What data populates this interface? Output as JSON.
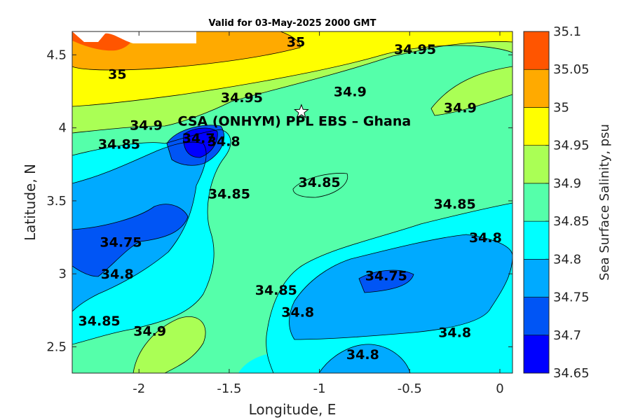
{
  "chart_data": {
    "type": "contour",
    "title": "Valid for 03-May-2025 2000 GMT",
    "xlabel": "Longitude, E",
    "ylabel": "Latitude, N",
    "colorbar_label": "Sea Surface Salinity, psu",
    "xlim": [
      -2.37,
      0.07
    ],
    "ylim": [
      2.32,
      4.66
    ],
    "x_ticks": [
      "-2",
      "-1.5",
      "-1",
      "-0.5",
      "0"
    ],
    "y_ticks": [
      "2.5",
      "3",
      "3.5",
      "4",
      "4.5"
    ],
    "colorbar_ticks": [
      "34.65",
      "34.7",
      "34.75",
      "34.8",
      "34.85",
      "34.9",
      "34.95",
      "35",
      "35.05",
      "35.1"
    ],
    "levels": [
      {
        "range": [
          34.65,
          34.7
        ],
        "color": "#0000ff"
      },
      {
        "range": [
          34.7,
          34.75
        ],
        "color": "#0055f5"
      },
      {
        "range": [
          34.75,
          34.8
        ],
        "color": "#00aaff"
      },
      {
        "range": [
          34.8,
          34.85
        ],
        "color": "#00ffff"
      },
      {
        "range": [
          34.85,
          34.9
        ],
        "color": "#55ffaa"
      },
      {
        "range": [
          34.9,
          34.95
        ],
        "color": "#aaff55"
      },
      {
        "range": [
          34.95,
          35.0
        ],
        "color": "#ffff00"
      },
      {
        "range": [
          35.0,
          35.05
        ],
        "color": "#ffaa00"
      },
      {
        "range": [
          35.05,
          35.1
        ],
        "color": "#ff5500"
      }
    ],
    "contour_labels": [
      {
        "text": "35",
        "lon": -1.13,
        "lat": 4.59
      },
      {
        "text": "34.95",
        "lon": -0.47,
        "lat": 4.54
      },
      {
        "text": "35",
        "lon": -2.12,
        "lat": 4.37
      },
      {
        "text": "34.95",
        "lon": -1.43,
        "lat": 4.21
      },
      {
        "text": "34.9",
        "lon": -0.83,
        "lat": 4.25
      },
      {
        "text": "34.9",
        "lon": -1.96,
        "lat": 4.02
      },
      {
        "text": "34.9",
        "lon": -0.22,
        "lat": 4.14
      },
      {
        "text": "34.85",
        "lon": -2.11,
        "lat": 3.89
      },
      {
        "text": "34.7",
        "lon": -1.67,
        "lat": 3.93
      },
      {
        "text": "34.8",
        "lon": -1.53,
        "lat": 3.91
      },
      {
        "text": "34.85",
        "lon": -1.5,
        "lat": 3.55
      },
      {
        "text": "34.85",
        "lon": -1.0,
        "lat": 3.63
      },
      {
        "text": "34.85",
        "lon": -0.25,
        "lat": 3.48
      },
      {
        "text": "34.8",
        "lon": -0.08,
        "lat": 3.25
      },
      {
        "text": "34.75",
        "lon": -2.1,
        "lat": 3.22
      },
      {
        "text": "34.8",
        "lon": -2.12,
        "lat": 3.0
      },
      {
        "text": "34.75",
        "lon": -0.63,
        "lat": 2.99
      },
      {
        "text": "34.85",
        "lon": -1.24,
        "lat": 2.89
      },
      {
        "text": "34.8",
        "lon": -1.12,
        "lat": 2.74
      },
      {
        "text": "34.85",
        "lon": -2.22,
        "lat": 2.68
      },
      {
        "text": "34.9",
        "lon": -1.94,
        "lat": 2.61
      },
      {
        "text": "34.8",
        "lon": -0.25,
        "lat": 2.6
      },
      {
        "text": "34.8",
        "lon": -0.76,
        "lat": 2.45
      }
    ],
    "site": {
      "label": "CSA (ONHYM) PPL EBS  – Ghana",
      "lon": -1.1,
      "lat": 4.11
    }
  }
}
